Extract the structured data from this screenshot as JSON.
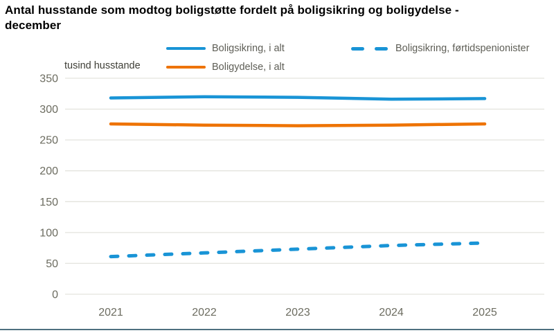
{
  "title_lines": [
    "Antal husstande som modtog boligstøtte fordelt på boligsikring og boligydelse -",
    "december"
  ],
  "unit_label": "tusind husstande",
  "legend": {
    "items": [
      {
        "label": "Boligsikring, i alt",
        "style": "solid",
        "color": "#1994d6"
      },
      {
        "label": "Boligsikring, førtidspenionister",
        "style": "dashed",
        "color": "#1994d6"
      },
      {
        "label": "Boligydelse, i alt",
        "style": "solid",
        "color": "#ee7303"
      }
    ]
  },
  "chart_data": {
    "type": "line",
    "title": "Antal husstande som modtog boligstøtte fordelt på boligsikring og boligydelse - december",
    "xlabel": "",
    "ylabel": "tusind husstande",
    "x": [
      2021,
      2022,
      2023,
      2024,
      2025
    ],
    "yticks": [
      0,
      50,
      100,
      150,
      200,
      250,
      300,
      350
    ],
    "ylim": [
      0,
      350
    ],
    "grid": true,
    "legend_position": "top",
    "series": [
      {
        "name": "Boligsikring, i alt",
        "style": "solid",
        "color": "#1994d6",
        "values": [
          318,
          320,
          319,
          316,
          317
        ]
      },
      {
        "name": "Boligydelse, i alt",
        "style": "solid",
        "color": "#ee7303",
        "values": [
          276,
          274,
          273,
          274,
          276
        ]
      },
      {
        "name": "Boligsikring, førtidspenionister",
        "style": "dashed",
        "color": "#1994d6",
        "values": [
          61,
          67,
          73,
          79,
          83
        ]
      }
    ]
  },
  "colors": {
    "grid": "#e3e3dd",
    "tick_text": "#6c6c60",
    "footer_bar": "#4e7080"
  }
}
